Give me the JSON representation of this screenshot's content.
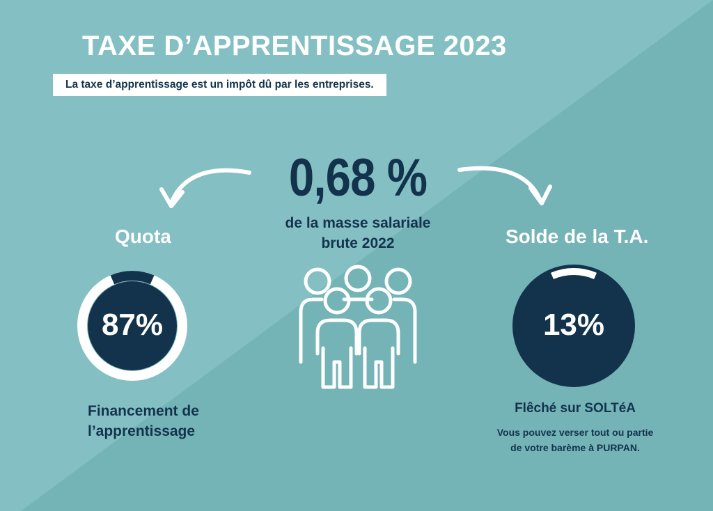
{
  "header": {
    "title": "TAXE D’APPRENTISSAGE 2023",
    "subtitle": "La taxe d’apprentissage est un impôt dû par les entreprises."
  },
  "center": {
    "percent": "0,68 %",
    "description_line1": "de la masse salariale",
    "description_line2": "brute 2022",
    "icon": "people-group-icon"
  },
  "quota": {
    "title": "Quota",
    "value": "87%",
    "fraction": 0.87,
    "caption_line1": "Financement de",
    "caption_line2": "l’apprentissage"
  },
  "solde": {
    "title": "Solde de la T.A.",
    "value": "13%",
    "fraction": 0.13,
    "caption_title": "Flêché sur SOLTéA",
    "caption_line1": "Vous pouvez verser tout ou partie",
    "caption_line2": "de votre barème à PURPAN."
  },
  "colors": {
    "background": "#7fbcbf",
    "background_shade": "#72b1b4",
    "navy": "#13334d",
    "white": "#ffffff"
  }
}
